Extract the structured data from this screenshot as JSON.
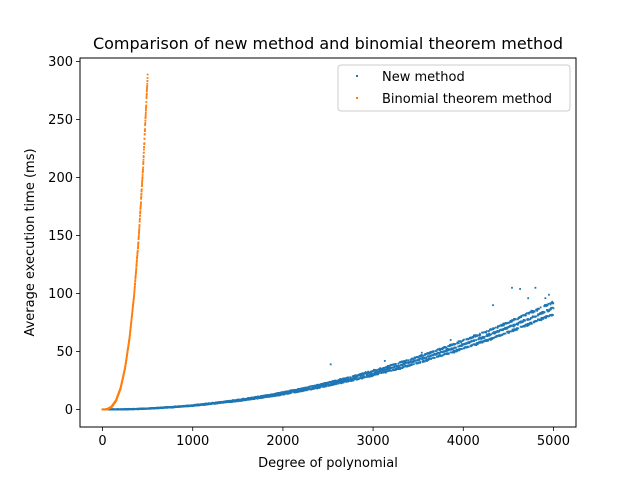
{
  "chart_data": {
    "type": "scatter",
    "title": "Comparison of new method and binomial theorem method",
    "xlabel": "Degree of polynomial",
    "ylabel": "Average execution time (ms)",
    "xlim": [
      -250,
      5250
    ],
    "ylim": [
      -15,
      303
    ],
    "xticks": [
      0,
      1000,
      2000,
      3000,
      4000,
      5000
    ],
    "yticks": [
      0,
      50,
      100,
      150,
      200,
      250,
      300
    ],
    "grid": false,
    "legend_position": "top-right",
    "series": [
      {
        "name": "New method",
        "color": "#1f77b4",
        "model": "noisy power-law trend (cluster of bands near y = 3.5e-6·x^2)",
        "x_range": [
          0,
          5000
        ],
        "y_range": [
          0,
          105
        ],
        "points": [
          [
            0,
            0.0
          ],
          [
            250,
            0.2
          ],
          [
            500,
            0.9
          ],
          [
            750,
            2.0
          ],
          [
            1000,
            3.5
          ],
          [
            1250,
            5.5
          ],
          [
            1500,
            7.9
          ],
          [
            1750,
            10.7
          ],
          [
            2000,
            14.0
          ],
          [
            2250,
            17.7
          ],
          [
            2500,
            21.9
          ],
          [
            2750,
            26.5
          ],
          [
            3000,
            31.5
          ],
          [
            3250,
            37.0
          ],
          [
            3500,
            42.9
          ],
          [
            3750,
            49.2
          ],
          [
            4000,
            56.0
          ],
          [
            4250,
            63.2
          ],
          [
            4500,
            70.9
          ],
          [
            4750,
            79.0
          ],
          [
            5000,
            87.5
          ]
        ],
        "outliers": [
          [
            1860,
            12.5
          ],
          [
            2530,
            39.0
          ],
          [
            3130,
            42.0
          ],
          [
            3300,
            35.0
          ],
          [
            3540,
            49.0
          ],
          [
            3860,
            60.0
          ],
          [
            4250,
            60.0
          ],
          [
            4330,
            90.0
          ],
          [
            4540,
            105.0
          ],
          [
            4630,
            104.0
          ],
          [
            4720,
            96.0
          ],
          [
            4800,
            105.0
          ],
          [
            4910,
            96.0
          ],
          [
            4950,
            99.0
          ]
        ]
      },
      {
        "name": "Binomial theorem method",
        "color": "#ff7f0e",
        "model": "steep power-law trend (y ≈ 2.3e-6·x^3)",
        "x_range": [
          0,
          500
        ],
        "y_range": [
          0,
          287
        ],
        "points": [
          [
            0,
            0.0
          ],
          [
            50,
            0.3
          ],
          [
            100,
            2.3
          ],
          [
            150,
            7.8
          ],
          [
            200,
            18.4
          ],
          [
            250,
            35.9
          ],
          [
            300,
            62.1
          ],
          [
            350,
            98.6
          ],
          [
            400,
            147.2
          ],
          [
            450,
            209.6
          ],
          [
            500,
            287.5
          ]
        ]
      }
    ]
  }
}
